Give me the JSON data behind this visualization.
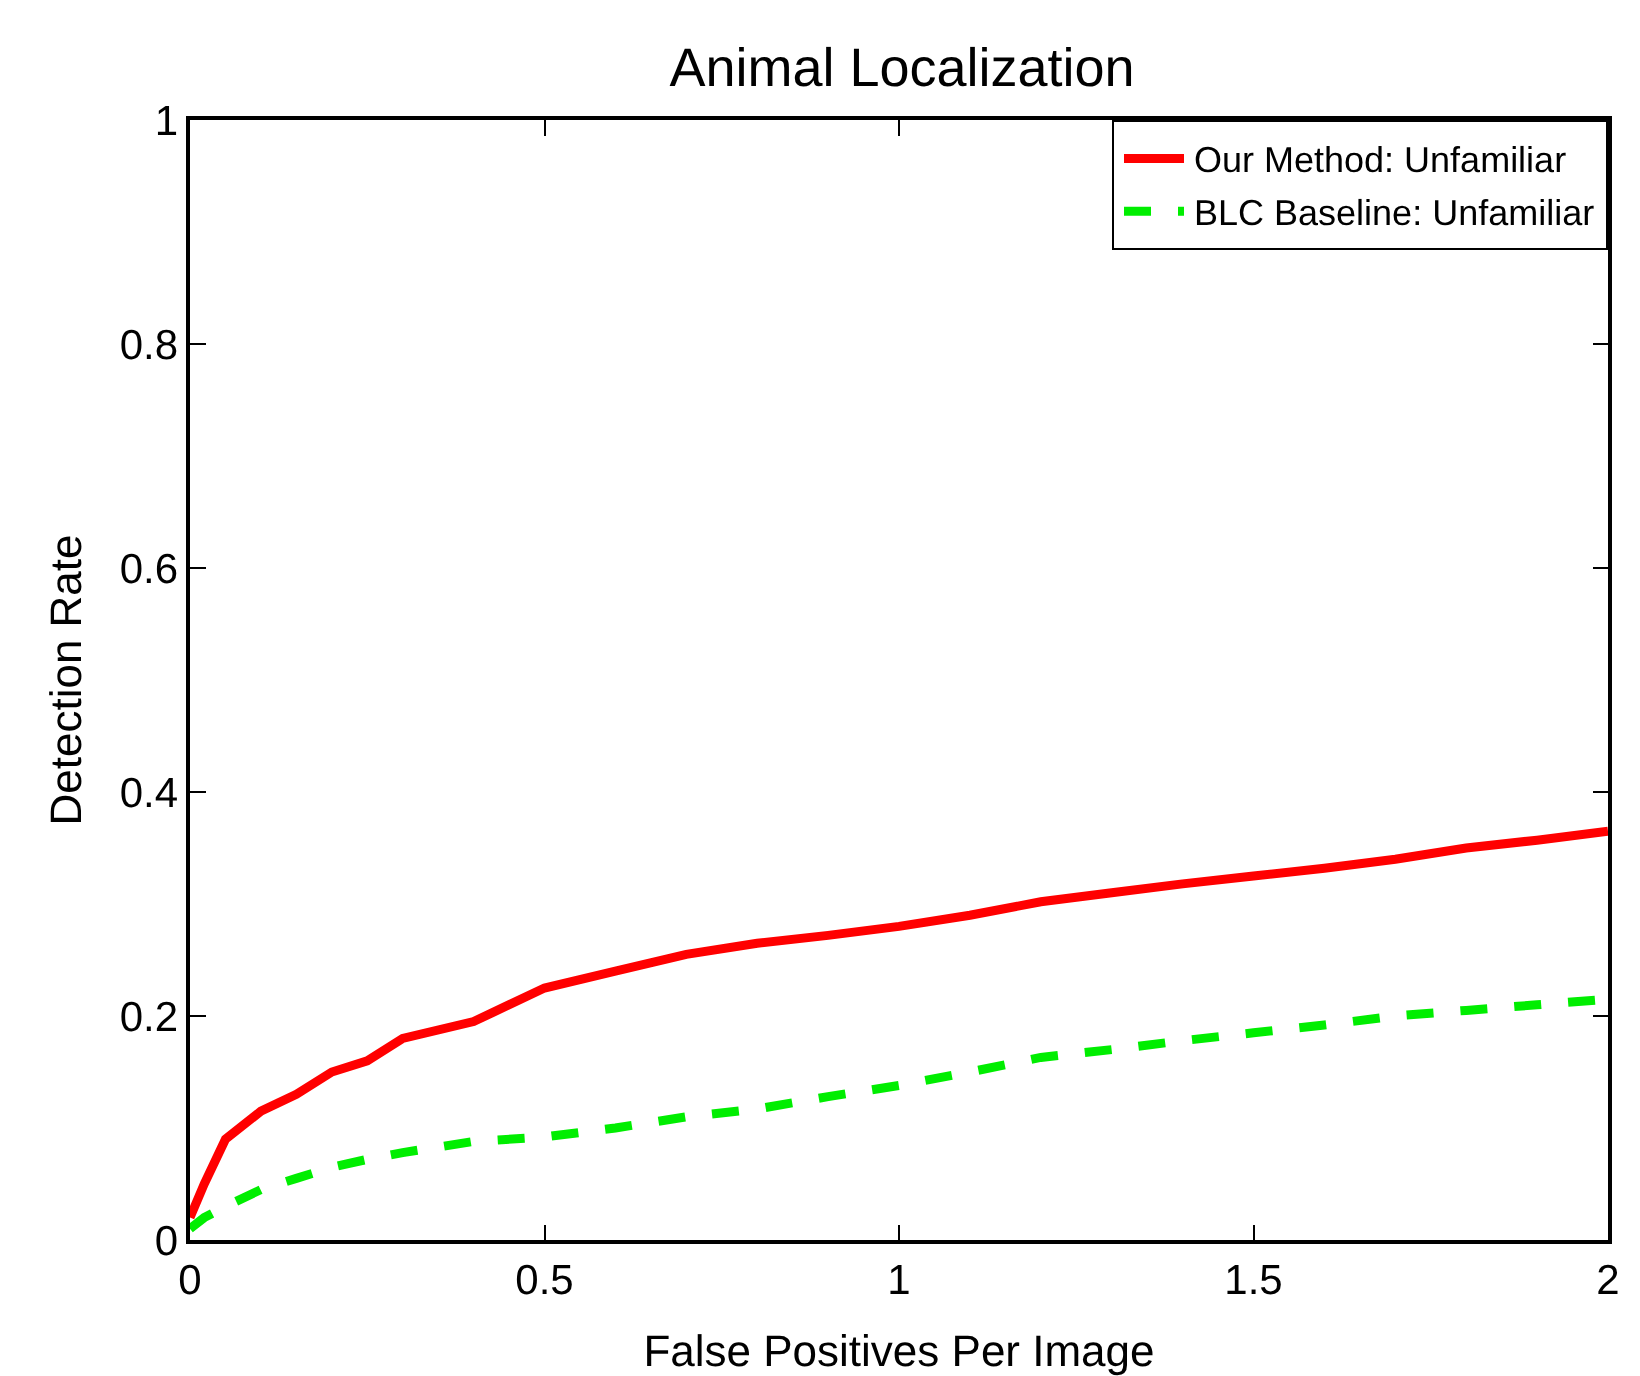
{
  "chart_data": {
    "type": "line",
    "title": "Animal Localization",
    "xlabel": "False Positives Per Image",
    "ylabel": "Detection Rate",
    "xlim": [
      0,
      2
    ],
    "ylim": [
      0,
      1
    ],
    "xticks": [
      0,
      0.5,
      1,
      1.5,
      2
    ],
    "yticks": [
      0,
      0.2,
      0.4,
      0.6,
      0.8,
      1
    ],
    "grid": false,
    "legend": "top right",
    "marker": "none",
    "x": [
      0,
      0.02,
      0.05,
      0.1,
      0.15,
      0.2,
      0.25,
      0.3,
      0.4,
      0.5,
      0.6,
      0.7,
      0.8,
      0.9,
      1,
      1.1,
      1.2,
      1.3,
      1.4,
      1.5,
      1.6,
      1.7,
      1.8,
      1.9,
      2
    ],
    "series": [
      {
        "name": "Our Method: Unfamiliar",
        "color": "#ff0000",
        "line_style": "solid",
        "values": [
          0.02,
          0.05,
          0.09,
          0.115,
          0.13,
          0.15,
          0.16,
          0.18,
          0.195,
          0.225,
          0.24,
          0.255,
          0.265,
          0.272,
          0.28,
          0.29,
          0.302,
          0.31,
          0.318,
          0.325,
          0.332,
          0.34,
          0.35,
          0.357,
          0.365
        ]
      },
      {
        "name": "BLC Baseline: Unfamiliar",
        "color": "#00ee00",
        "line_style": "dashed",
        "values": [
          0.01,
          0.02,
          0.03,
          0.045,
          0.055,
          0.065,
          0.072,
          0.078,
          0.088,
          0.092,
          0.1,
          0.11,
          0.117,
          0.128,
          0.138,
          0.15,
          0.163,
          0.17,
          0.178,
          0.185,
          0.192,
          0.2,
          0.205,
          0.21,
          0.215
        ]
      }
    ]
  }
}
